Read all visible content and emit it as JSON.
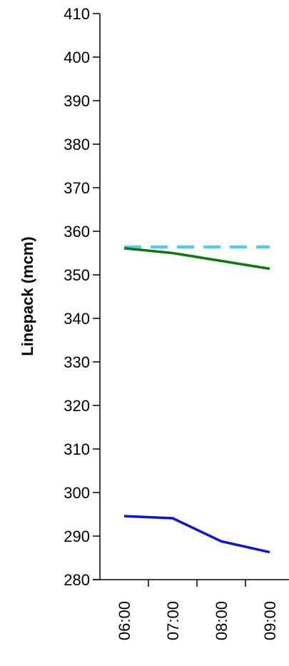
{
  "chart_data": {
    "type": "line",
    "title": "",
    "xlabel": "",
    "ylabel": "Linepack (mcm)",
    "ylim": [
      280,
      410
    ],
    "yticks": [
      280,
      290,
      300,
      310,
      320,
      330,
      340,
      350,
      360,
      370,
      380,
      390,
      400,
      410
    ],
    "categories": [
      "06:00",
      "07:00",
      "08:00",
      "09:00"
    ],
    "grid": false,
    "legend": "none",
    "series": [
      {
        "color": "#5BC8EE",
        "style": "dashed",
        "values": [
          356.4,
          356.4,
          356.4,
          356.4
        ]
      },
      {
        "color": "#0A7A0A",
        "style": "solid",
        "values": [
          356.1,
          355.0,
          353.2,
          351.4
        ]
      },
      {
        "color": "#0A14DC",
        "style": "solid",
        "values": [
          294.6,
          294.1,
          288.8,
          286.3
        ]
      }
    ]
  }
}
